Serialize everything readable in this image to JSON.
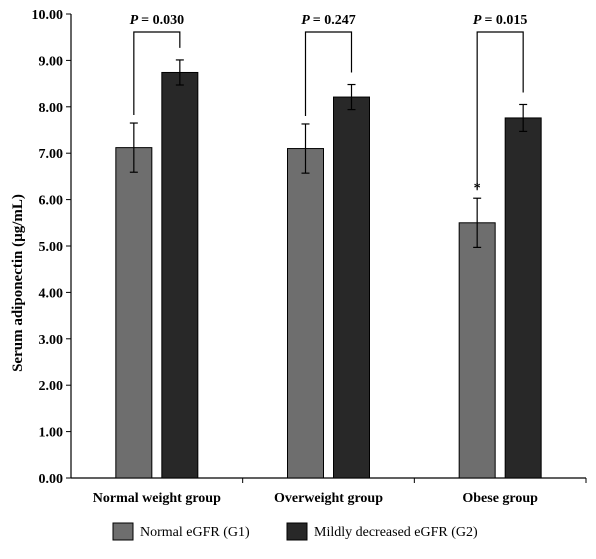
{
  "chart_data": {
    "type": "bar",
    "ylabel": "Serum adiponectin (µg/mL)",
    "xlabel": "",
    "ylim": [
      0,
      10
    ],
    "ytick_step": 1,
    "y_ticks": [
      "0.00",
      "1.00",
      "2.00",
      "3.00",
      "4.00",
      "5.00",
      "6.00",
      "7.00",
      "8.00",
      "9.00",
      "10.00"
    ],
    "categories": [
      "Normal weight group",
      "Overweight group",
      "Obese group"
    ],
    "series": [
      {
        "name": "Normal eGFR (G1)",
        "color": "#6e6e6e",
        "values": [
          7.12,
          7.1,
          5.5
        ],
        "error": [
          0.53,
          0.53,
          0.53
        ]
      },
      {
        "name": "Mildly decreased eGFR (G2)",
        "color": "#282828",
        "values": [
          8.74,
          8.21,
          7.76
        ],
        "error": [
          0.27,
          0.27,
          0.29
        ]
      }
    ],
    "annotations": {
      "p_prefix": "P",
      "p_values": [
        "= 0.030",
        "= 0.247",
        "= 0.015"
      ],
      "markers": [
        {
          "category": 2,
          "series": 0,
          "text": "*"
        }
      ]
    },
    "grid": false,
    "legend_position": "bottom"
  }
}
